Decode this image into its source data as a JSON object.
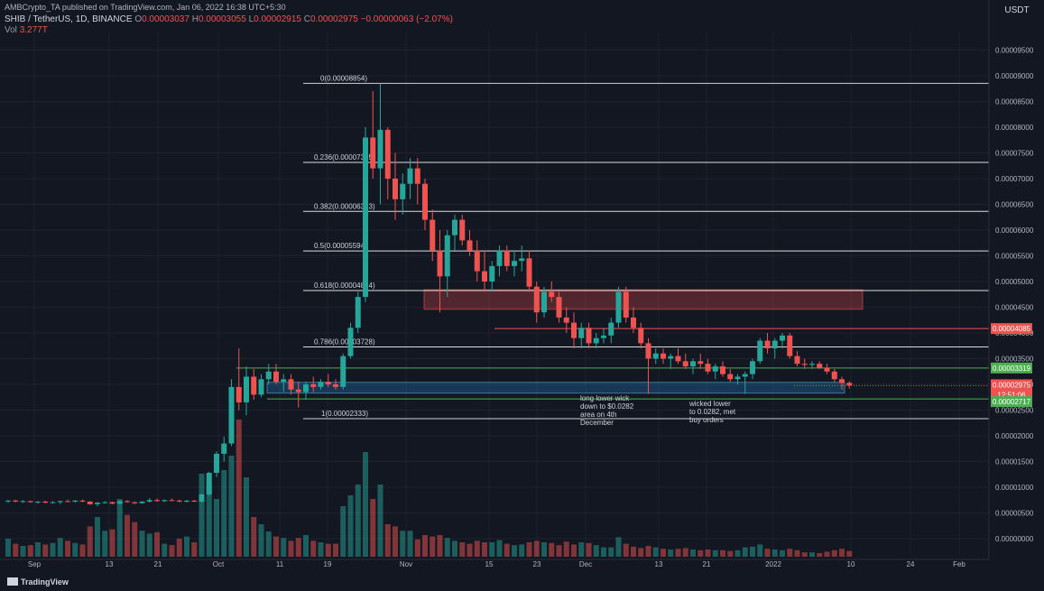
{
  "header": {
    "published": "AMBCrypto_TA published on TradingView.com, Jan 06, 2022 16:38 UTC+5:30",
    "symbol": "SHIB / TetherUS, 1D, BINANCE",
    "open_label": "O",
    "open": "0.00003037",
    "high_label": "H",
    "high": "0.00003055",
    "low_label": "L",
    "low": "0.00002915",
    "close_label": "C",
    "close": "0.00002975",
    "change": "−0.00000063 (−2.07%)",
    "vol_label": "Vol",
    "vol": "3.277T"
  },
  "currency": "USDT",
  "watermark": "TradingView",
  "colors": {
    "up": "#26a69a",
    "down": "#ef5350",
    "bg": "#131722",
    "fib": "#ffffff",
    "support": "#4caf50",
    "resistance": "#ef5350"
  },
  "chart_data": {
    "type": "candlestick",
    "y_ticks": [
      "0.00009500",
      "0.00009000",
      "0.00008500",
      "0.00008000",
      "0.00007500",
      "0.00007000",
      "0.00006500",
      "0.00006000",
      "0.00005500",
      "0.00005000",
      "0.00004500",
      "0.00004000",
      "0.00003500",
      "0.00003000",
      "0.00002500",
      "0.00002000",
      "0.00001500",
      "0.00001000",
      "0.00000500",
      "0.00000000"
    ],
    "x_ticks": [
      "Sep",
      "13",
      "21",
      "Oct",
      "11",
      "19",
      "Nov",
      "15",
      "23",
      "Dec",
      "13",
      "21",
      "2022",
      "10",
      "24",
      "Feb"
    ],
    "price_labels": [
      {
        "text": "0.00004085",
        "value": 4.085e-05,
        "kind": "resistance"
      },
      {
        "text": "0.00003319",
        "value": 3.319e-05,
        "kind": "support"
      },
      {
        "text": "0.00002975",
        "value": 2.975e-05,
        "kind": "current"
      },
      {
        "text": "12:51:06",
        "kind": "countdown"
      },
      {
        "text": "0.00002717",
        "value": 2.717e-05,
        "kind": "support"
      }
    ],
    "fib_levels": [
      {
        "label": "0(0.00008854)",
        "value": 8.854e-05
      },
      {
        "label": "0.236(0.00007315)",
        "value": 7.315e-05
      },
      {
        "label": "0.382(0.00006363)",
        "value": 6.363e-05
      },
      {
        "label": "0.5(0.00005594)",
        "value": 5.594e-05
      },
      {
        "label": "0.618(0.00004824)",
        "value": 4.824e-05
      },
      {
        "label": "0.786(0.00003728)",
        "value": 3.728e-05
      },
      {
        "label": "1(0.00002333)",
        "value": 2.333e-05
      }
    ],
    "zones": [
      {
        "kind": "supply",
        "from": 4.46e-05,
        "to": 4.84e-05
      },
      {
        "kind": "demand",
        "from": 2.83e-05,
        "to": 3.04e-05
      }
    ],
    "annotations": [
      {
        "text": [
          "long lower wick",
          "down to $0.0282",
          "area on 4th",
          "December"
        ]
      },
      {
        "text": [
          "wicked lower",
          "to 0.0282, met",
          "buy orders"
        ]
      }
    ],
    "candles": [
      [
        7.3e-06,
        7.5e-06,
        7e-06,
        7.4e-06,
        2.5
      ],
      [
        7.4e-06,
        7.6e-06,
        7.1e-06,
        7.2e-06,
        1.8
      ],
      [
        7.2e-06,
        7.5e-06,
        7e-06,
        7.3e-06,
        1.5
      ],
      [
        7.3e-06,
        7.4e-06,
        7e-06,
        7.1e-06,
        1.6
      ],
      [
        7.1e-06,
        7.3e-06,
        6.8e-06,
        7.2e-06,
        2.0
      ],
      [
        7.2e-06,
        7.4e-06,
        6.9e-06,
        7e-06,
        1.7
      ],
      [
        7e-06,
        7.3e-06,
        6.8e-06,
        7.1e-06,
        1.9
      ],
      [
        7.1e-06,
        7.4e-06,
        6.7e-06,
        7.3e-06,
        2.6
      ],
      [
        7.3e-06,
        7.6e-06,
        7.1e-06,
        7.2e-06,
        2.2
      ],
      [
        7.2e-06,
        7.5e-06,
        7e-06,
        7.4e-06,
        1.9
      ],
      [
        7.4e-06,
        7.6e-06,
        7.1e-06,
        7.2e-06,
        1.7
      ],
      [
        7.2e-06,
        7.3e-06,
        6.6e-06,
        6.7e-06,
        4.2
      ],
      [
        6.7e-06,
        7.1e-06,
        6.3e-06,
        7e-06,
        5.5
      ],
      [
        7e-06,
        7.3e-06,
        6.8e-06,
        7.1e-06,
        3.6
      ],
      [
        7.1e-06,
        7.2e-06,
        6.7e-06,
        6.8e-06,
        3.8
      ],
      [
        6.8e-06,
        7.4e-06,
        6.7e-06,
        7.3e-06,
        8.0
      ],
      [
        7.3e-06,
        7.5e-06,
        7e-06,
        7.1e-06,
        5.8
      ],
      [
        7.1e-06,
        7.2e-06,
        6.7e-06,
        6.9e-06,
        4.8
      ],
      [
        6.9e-06,
        7.3e-06,
        6.8e-06,
        7.2e-06,
        3.6
      ],
      [
        7.2e-06,
        7.9e-06,
        7e-06,
        7.5e-06,
        3.2
      ],
      [
        7.5e-06,
        7.8e-06,
        7.2e-06,
        7.3e-06,
        3.4
      ],
      [
        7.3e-06,
        7.6e-06,
        7.1e-06,
        7.5e-06,
        1.8
      ],
      [
        7.5e-06,
        7.8e-06,
        7.3e-06,
        7.4e-06,
        1.6
      ],
      [
        7.4e-06,
        7.6e-06,
        7.1e-06,
        7.2e-06,
        2.5
      ],
      [
        7.2e-06,
        7.5e-06,
        7e-06,
        7.4e-06,
        2.8
      ],
      [
        7.4e-06,
        7.5e-06,
        7.1e-06,
        7.2e-06,
        2.0
      ],
      [
        7.2e-06,
        8.8e-06,
        7e-06,
        8.6e-06,
        11.5
      ],
      [
        8.6e-06,
        1.3e-05,
        8.3e-06,
        1.28e-05,
        10.0
      ],
      [
        1.28e-05,
        1.7e-05,
        1.2e-05,
        1.65e-05,
        8.0
      ],
      [
        1.65e-05,
        1.98e-05,
        1.5e-05,
        1.85e-05,
        12.0
      ],
      [
        1.85e-05,
        3.1e-05,
        1.8e-05,
        2.95e-05,
        14.0
      ],
      [
        2.95e-05,
        3.7e-05,
        2.5e-05,
        2.65e-05,
        19.0
      ],
      [
        2.65e-05,
        3.35e-05,
        2.4e-05,
        3.15e-05,
        11.0
      ],
      [
        3.15e-05,
        3.3e-05,
        2.7e-05,
        2.8e-05,
        5.5
      ],
      [
        2.8e-05,
        3.2e-05,
        2.75e-05,
        3.1e-05,
        4.5
      ],
      [
        3.1e-05,
        3.4e-05,
        3e-05,
        3.25e-05,
        3.5
      ],
      [
        3.25e-05,
        3.4e-05,
        3e-05,
        3.05e-05,
        2.8
      ],
      [
        3.05e-05,
        3.2e-05,
        2.85e-05,
        3.1e-05,
        2.6
      ],
      [
        3.1e-05,
        3.2e-05,
        2.8e-05,
        2.9e-05,
        2.2
      ],
      [
        2.9e-05,
        3.05e-05,
        2.55e-05,
        2.85e-05,
        2.6
      ],
      [
        2.85e-05,
        3.05e-05,
        2.7e-05,
        3e-05,
        3.0
      ],
      [
        3e-05,
        3.15e-05,
        2.85e-05,
        2.95e-05,
        2.2
      ],
      [
        2.95e-05,
        3.1e-05,
        2.9e-05,
        3.05e-05,
        2.0
      ],
      [
        3.05e-05,
        3.2e-05,
        2.95e-05,
        3e-05,
        1.8
      ],
      [
        3e-05,
        3.1e-05,
        2.9e-05,
        2.95e-05,
        1.8
      ],
      [
        2.95e-05,
        3.6e-05,
        2.9e-05,
        3.55e-05,
        7.0
      ],
      [
        3.55e-05,
        4.2e-05,
        3.5e-05,
        4.1e-05,
        8.5
      ],
      [
        4.1e-05,
        4.8e-05,
        4e-05,
        4.7e-05,
        10.0
      ],
      [
        4.7e-05,
        8e-05,
        4.6e-05,
        7.8e-05,
        14.5
      ],
      [
        7.8e-05,
        8.7e-05,
        7e-05,
        7.2e-05,
        8.0
      ],
      [
        7.2e-05,
        8.85e-05,
        6.5e-05,
        7.95e-05,
        10.0
      ],
      [
        7.95e-05,
        8e-05,
        6.6e-05,
        7e-05,
        4.5
      ],
      [
        7e-05,
        7.5e-05,
        6.2e-05,
        6.6e-05,
        4.2
      ],
      [
        6.6e-05,
        7.1e-05,
        6.3e-05,
        6.9e-05,
        3.6
      ],
      [
        6.9e-05,
        7.4e-05,
        6.6e-05,
        7.2e-05,
        3.6
      ],
      [
        7.2e-05,
        7.4e-05,
        6.5e-05,
        6.9e-05,
        2.4
      ],
      [
        6.9e-05,
        7e-05,
        6e-05,
        6.2e-05,
        3.0
      ],
      [
        6.2e-05,
        6.4e-05,
        5.4e-05,
        5.6e-05,
        2.8
      ],
      [
        5.6e-05,
        6e-05,
        4.4e-05,
        5.1e-05,
        3.0
      ],
      [
        5.1e-05,
        6e-05,
        4.7e-05,
        5.9e-05,
        2.6
      ],
      [
        5.9e-05,
        6.3e-05,
        5.6e-05,
        6.2e-05,
        2.2
      ],
      [
        6.2e-05,
        6.3e-05,
        5.7e-05,
        5.8e-05,
        2.0
      ],
      [
        5.8e-05,
        6e-05,
        5.5e-05,
        5.6e-05,
        1.8
      ],
      [
        5.6e-05,
        5.8e-05,
        5e-05,
        5.2e-05,
        2.2
      ],
      [
        5.2e-05,
        5.6e-05,
        4.8e-05,
        5e-05,
        2.0
      ],
      [
        5e-05,
        5.4e-05,
        4.8e-05,
        5.3e-05,
        2.0
      ],
      [
        5.3e-05,
        5.7e-05,
        5.1e-05,
        5.6e-05,
        2.3
      ],
      [
        5.6e-05,
        5.7e-05,
        5.2e-05,
        5.3e-05,
        1.8
      ],
      [
        5.3e-05,
        5.6e-05,
        5.1e-05,
        5.4e-05,
        1.6
      ],
      [
        5.4e-05,
        5.7e-05,
        5.2e-05,
        5.45e-05,
        1.7
      ],
      [
        5.45e-05,
        5.6e-05,
        4.8e-05,
        4.9e-05,
        2.0
      ],
      [
        4.9e-05,
        5e-05,
        4.2e-05,
        4.4e-05,
        2.2
      ],
      [
        4.4e-05,
        4.9e-05,
        4.3e-05,
        4.8e-05,
        2.0
      ],
      [
        4.8e-05,
        5e-05,
        4.6e-05,
        4.7e-05,
        1.9
      ],
      [
        4.7e-05,
        4.8e-05,
        4.2e-05,
        4.3e-05,
        1.6
      ],
      [
        4.3e-05,
        4.5e-05,
        4e-05,
        4.2e-05,
        2.1
      ],
      [
        4.2e-05,
        4.4e-05,
        3.7e-05,
        3.9e-05,
        1.7
      ],
      [
        3.9e-05,
        4.2e-05,
        3.7e-05,
        4.1e-05,
        2.0
      ],
      [
        4.1e-05,
        4.2e-05,
        3.7e-05,
        3.8e-05,
        1.9
      ],
      [
        3.8e-05,
        4e-05,
        3.7e-05,
        3.9e-05,
        1.6
      ],
      [
        3.9e-05,
        4.1e-05,
        3.8e-05,
        3.95e-05,
        1.3
      ],
      [
        3.95e-05,
        4.3e-05,
        3.8e-05,
        4.2e-05,
        1.3
      ],
      [
        4.2e-05,
        4.9e-05,
        4.1e-05,
        4.8e-05,
        2.7
      ],
      [
        4.8e-05,
        4.9e-05,
        4.2e-05,
        4.3e-05,
        1.8
      ],
      [
        4.3e-05,
        4.5e-05,
        4e-05,
        4.1e-05,
        1.4
      ],
      [
        4.1e-05,
        4.2e-05,
        3.7e-05,
        3.8e-05,
        1.2
      ],
      [
        3.8e-05,
        3.9e-05,
        2.82e-05,
        3.5e-05,
        1.5
      ],
      [
        3.5e-05,
        3.7e-05,
        3.4e-05,
        3.6e-05,
        1.3
      ],
      [
        3.6e-05,
        3.7e-05,
        3.4e-05,
        3.5e-05,
        1.1
      ],
      [
        3.5e-05,
        3.6e-05,
        3.3e-05,
        3.55e-05,
        1.0
      ],
      [
        3.55e-05,
        3.7e-05,
        3.4e-05,
        3.45e-05,
        1.1
      ],
      [
        3.45e-05,
        3.6e-05,
        3.3e-05,
        3.35e-05,
        1.2
      ],
      [
        3.35e-05,
        3.5e-05,
        3.2e-05,
        3.45e-05,
        1.0
      ],
      [
        3.45e-05,
        3.6e-05,
        3.3e-05,
        3.4e-05,
        0.9
      ],
      [
        3.4e-05,
        3.5e-05,
        3.2e-05,
        3.25e-05,
        1.0
      ],
      [
        3.25e-05,
        3.4e-05,
        3.1e-05,
        3.35e-05,
        0.9
      ],
      [
        3.35e-05,
        3.45e-05,
        3.15e-05,
        3.2e-05,
        0.9
      ],
      [
        3.2e-05,
        3.3e-05,
        3.05e-05,
        3.1e-05,
        0.8
      ],
      [
        3.1e-05,
        3.2e-05,
        3e-05,
        3.15e-05,
        0.9
      ],
      [
        3.15e-05,
        3.25e-05,
        2.82e-05,
        3.2e-05,
        1.3
      ],
      [
        3.2e-05,
        3.5e-05,
        3.1e-05,
        3.45e-05,
        1.4
      ],
      [
        3.45e-05,
        3.9e-05,
        3.4e-05,
        3.85e-05,
        1.7
      ],
      [
        3.85e-05,
        4e-05,
        3.6e-05,
        3.7e-05,
        1.1
      ],
      [
        3.7e-05,
        3.9e-05,
        3.5e-05,
        3.85e-05,
        1.0
      ],
      [
        3.85e-05,
        4e-05,
        3.7e-05,
        3.95e-05,
        0.9
      ],
      [
        3.95e-05,
        4e-05,
        3.5e-05,
        3.55e-05,
        1.1
      ],
      [
        3.55e-05,
        3.65e-05,
        3.35e-05,
        3.4e-05,
        0.9
      ],
      [
        3.4e-05,
        3.5e-05,
        3.3e-05,
        3.38e-05,
        0.6
      ],
      [
        3.38e-05,
        3.45e-05,
        3.3e-05,
        3.4e-05,
        0.6
      ],
      [
        3.4e-05,
        3.45e-05,
        3.3e-05,
        3.32e-05,
        0.5
      ],
      [
        3.32e-05,
        3.4e-05,
        3.2e-05,
        3.25e-05,
        0.7
      ],
      [
        3.25e-05,
        3.3e-05,
        3.05e-05,
        3.1e-05,
        0.9
      ],
      [
        3.1e-05,
        3.15e-05,
        2.9e-05,
        3.03e-05,
        1.1
      ],
      [
        3.03e-05,
        3.06e-05,
        2.92e-05,
        2.98e-05,
        0.8
      ]
    ]
  }
}
